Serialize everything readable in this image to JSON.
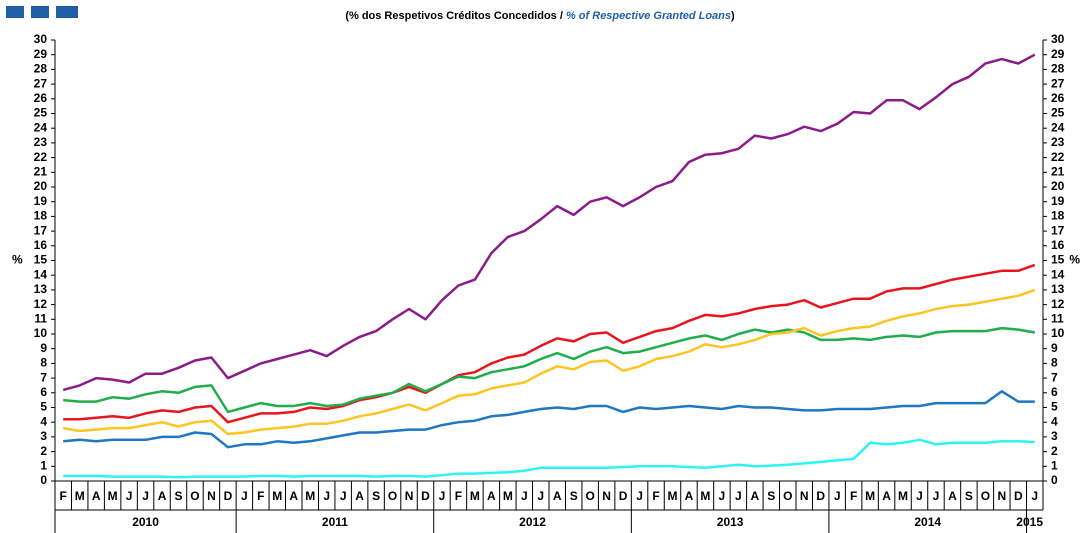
{
  "chart_data": {
    "type": "line",
    "subtitle": [
      "(% dos Respetivos Créditos Concedidos / ",
      "% of Respective Granted Loans",
      ")"
    ],
    "ylabel": "%",
    "categories": [
      "F",
      "M",
      "A",
      "M",
      "J",
      "J",
      "A",
      "S",
      "O",
      "N",
      "D",
      "J",
      "F",
      "M",
      "A",
      "M",
      "J",
      "J",
      "A",
      "S",
      "O",
      "N",
      "D",
      "J",
      "F",
      "M",
      "A",
      "M",
      "J",
      "J",
      "A",
      "S",
      "O",
      "N",
      "D",
      "J",
      "F",
      "M",
      "A",
      "M",
      "J",
      "J",
      "A",
      "S",
      "O",
      "N",
      "D",
      "J",
      "F",
      "M",
      "A",
      "M",
      "J",
      "J",
      "A",
      "S",
      "O",
      "N",
      "D",
      "J"
    ],
    "years": [
      "2010",
      "2011",
      "2012",
      "2013",
      "2014",
      "2015"
    ],
    "ylim": [
      0,
      30
    ],
    "yticks": [
      0,
      1,
      2,
      3,
      4,
      5,
      6,
      7,
      8,
      9,
      10,
      11,
      12,
      13,
      14,
      15,
      16,
      17,
      18,
      19,
      20,
      21,
      22,
      23,
      24,
      25,
      26,
      27,
      28,
      29,
      30
    ],
    "y2lim": [
      0,
      30
    ],
    "y2ticks": [
      0,
      1,
      2,
      3,
      4,
      5,
      6,
      7,
      8,
      9,
      10,
      11,
      12,
      13,
      14,
      15,
      16,
      17,
      18,
      19,
      20,
      21,
      22,
      23,
      24,
      25,
      26,
      27,
      28,
      29,
      30
    ],
    "series": [
      {
        "color": "#8b1a8b",
        "values": [
          6.2,
          6.5,
          7.0,
          6.9,
          6.7,
          7.3,
          7.3,
          7.7,
          8.2,
          8.4,
          7.0,
          7.5,
          8.0,
          8.3,
          8.6,
          8.9,
          8.5,
          9.2,
          9.8,
          10.2,
          11.0,
          11.7,
          11.0,
          12.3,
          13.3,
          13.7,
          15.5,
          16.6,
          17.0,
          17.8,
          18.7,
          18.1,
          19.0,
          19.3,
          18.7,
          19.3,
          20.0,
          20.4,
          21.7,
          22.2,
          22.3,
          22.6,
          23.5,
          23.3,
          23.6,
          24.1,
          23.8,
          24.3,
          25.1,
          25.0,
          25.9,
          25.9,
          25.3,
          26.1,
          27.0,
          27.5,
          28.4,
          28.7,
          28.4,
          29.0
        ]
      },
      {
        "color": "#e8161c",
        "values": [
          4.2,
          4.2,
          4.3,
          4.4,
          4.3,
          4.6,
          4.8,
          4.7,
          5.0,
          5.1,
          4.0,
          4.3,
          4.6,
          4.6,
          4.7,
          5.0,
          4.9,
          5.1,
          5.5,
          5.7,
          6.0,
          6.4,
          6.0,
          6.6,
          7.2,
          7.4,
          8.0,
          8.4,
          8.6,
          9.2,
          9.7,
          9.5,
          10.0,
          10.1,
          9.4,
          9.8,
          10.2,
          10.4,
          10.9,
          11.3,
          11.2,
          11.4,
          11.7,
          11.9,
          12.0,
          12.3,
          11.8,
          12.1,
          12.4,
          12.4,
          12.9,
          13.1,
          13.1,
          13.4,
          13.7,
          13.9,
          14.1,
          14.3,
          14.3,
          14.7
        ]
      },
      {
        "color": "#1fae4b",
        "values": [
          5.5,
          5.4,
          5.4,
          5.7,
          5.6,
          5.9,
          6.1,
          6.0,
          6.4,
          6.5,
          4.7,
          5.0,
          5.3,
          5.1,
          5.1,
          5.3,
          5.1,
          5.2,
          5.6,
          5.8,
          6.0,
          6.6,
          6.1,
          6.6,
          7.1,
          7.0,
          7.4,
          7.6,
          7.8,
          8.3,
          8.7,
          8.3,
          8.8,
          9.1,
          8.7,
          8.8,
          9.1,
          9.4,
          9.7,
          9.9,
          9.6,
          10.0,
          10.3,
          10.1,
          10.3,
          10.1,
          9.6,
          9.6,
          9.7,
          9.6,
          9.8,
          9.9,
          9.8,
          10.1,
          10.2,
          10.2,
          10.2,
          10.4,
          10.3,
          10.1
        ]
      },
      {
        "color": "#fcc521",
        "values": [
          3.6,
          3.4,
          3.5,
          3.6,
          3.6,
          3.8,
          4.0,
          3.7,
          4.0,
          4.1,
          3.2,
          3.3,
          3.5,
          3.6,
          3.7,
          3.9,
          3.9,
          4.1,
          4.4,
          4.6,
          4.9,
          5.2,
          4.8,
          5.3,
          5.8,
          5.9,
          6.3,
          6.5,
          6.7,
          7.3,
          7.8,
          7.6,
          8.1,
          8.2,
          7.5,
          7.8,
          8.3,
          8.5,
          8.8,
          9.3,
          9.1,
          9.3,
          9.6,
          10.0,
          10.1,
          10.4,
          9.9,
          10.2,
          10.4,
          10.5,
          10.9,
          11.2,
          11.4,
          11.7,
          11.9,
          12.0,
          12.2,
          12.4,
          12.6,
          13.0
        ]
      },
      {
        "color": "#1f78c1",
        "values": [
          2.7,
          2.8,
          2.7,
          2.8,
          2.8,
          2.8,
          3.0,
          3.0,
          3.3,
          3.2,
          2.3,
          2.5,
          2.5,
          2.7,
          2.6,
          2.7,
          2.9,
          3.1,
          3.3,
          3.3,
          3.4,
          3.5,
          3.5,
          3.8,
          4.0,
          4.1,
          4.4,
          4.5,
          4.7,
          4.9,
          5.0,
          4.9,
          5.1,
          5.1,
          4.7,
          5.0,
          4.9,
          5.0,
          5.1,
          5.0,
          4.9,
          5.1,
          5.0,
          5.0,
          4.9,
          4.8,
          4.8,
          4.9,
          4.9,
          4.9,
          5.0,
          5.1,
          5.1,
          5.3,
          5.3,
          5.3,
          5.3,
          6.1,
          5.4,
          5.4
        ]
      },
      {
        "color": "#2ef3f5",
        "values": [
          0.35,
          0.35,
          0.35,
          0.3,
          0.3,
          0.3,
          0.3,
          0.25,
          0.3,
          0.3,
          0.3,
          0.3,
          0.35,
          0.35,
          0.3,
          0.35,
          0.35,
          0.35,
          0.35,
          0.3,
          0.35,
          0.35,
          0.3,
          0.4,
          0.5,
          0.5,
          0.55,
          0.6,
          0.7,
          0.9,
          0.9,
          0.9,
          0.9,
          0.9,
          0.95,
          1.0,
          1.0,
          1.0,
          0.95,
          0.9,
          1.0,
          1.1,
          1.0,
          1.05,
          1.1,
          1.2,
          1.3,
          1.4,
          1.5,
          2.6,
          2.5,
          2.6,
          2.8,
          2.5,
          2.6,
          2.6,
          2.6,
          2.7,
          2.7,
          2.65
        ]
      }
    ]
  }
}
